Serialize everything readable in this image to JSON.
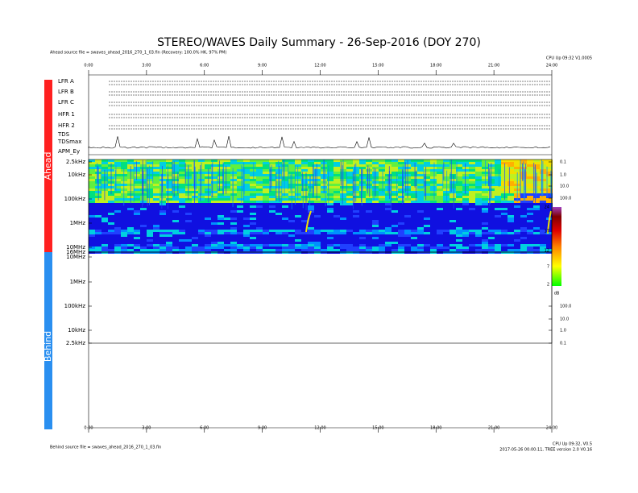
{
  "header": {
    "title": "STEREO/WAVES Daily Summary - 26-Sep-2016 (DOY 270)",
    "ahead_source": "Ahead source file = swaves_ahead_2016_270_1_03.fin (Recovery: 100.0% HK, 97% PM)",
    "version": "CPU Up 09:32 V1.0005"
  },
  "time_ticks": [
    "0:00",
    "3:00",
    "6:00",
    "9:00",
    "12:00",
    "15:00",
    "18:00",
    "21:00",
    "24:00"
  ],
  "side_labels": {
    "ahead": "Ahead",
    "behind": "Behind"
  },
  "panels": [
    "LFR A",
    "LFR B",
    "LFR C",
    "HFR 1",
    "HFR 2",
    "TDS",
    "TDSmax",
    "APM_Ey"
  ],
  "ahead_freq_labels": [
    "2.5kHz",
    "10kHz",
    "100kHz",
    "1MHz",
    "10MHz",
    "16MHz",
    "10MHz"
  ],
  "behind_freq_labels": [
    "1MHz",
    "100kHz",
    "10kHz",
    "2.5kHz"
  ],
  "ahead_right_labels": [
    "0.1",
    "1.0",
    "10.0",
    "100.0"
  ],
  "behind_right_labels": [
    "100.0",
    "10.0",
    "1.0",
    "0.1"
  ],
  "colorbar": {
    "ticks": [
      "24",
      "17",
      "12",
      "7",
      "2"
    ],
    "unit": "dB"
  },
  "footer": {
    "behind_source": "Behind source file = swaves_ahead_2016_270_1_03.fin",
    "version": "CPU Up 09:32, V0.5",
    "created": "2017-05-26 00:00:11, TREE version 2.0 V0.16"
  }
}
